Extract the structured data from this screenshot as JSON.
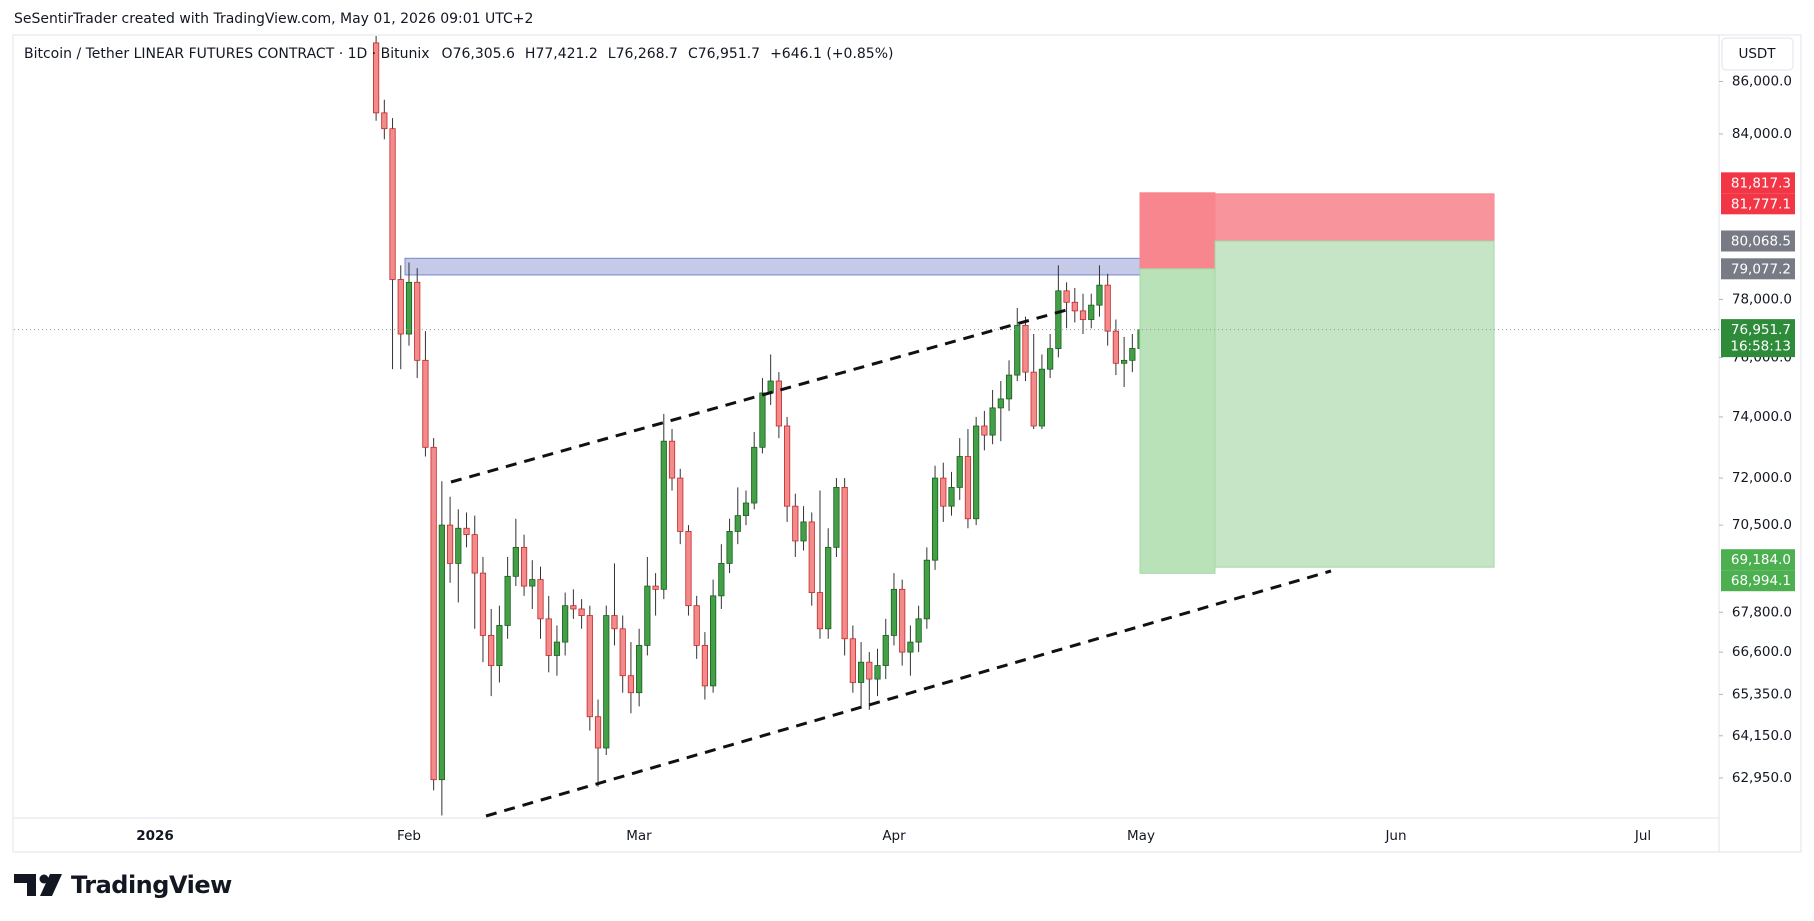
{
  "watermark_text": "SeSentirTrader created with TradingView.com, May 01, 2026 09:01 UTC+2",
  "symbol": "Bitcoin / Tether LINEAR FUTURES CONTRACT · 1D · Bitunix",
  "ohlc_text": [
    "O76,305.6",
    "H77,421.2",
    "L76,268.7",
    "C76,951.7",
    "+646.1 (+0.85%)"
  ],
  "currency": "USDT",
  "brand": "TradingView",
  "chart_data": {
    "type": "candlestick",
    "log_scale": true,
    "xtick_labels": [
      "2026",
      "Feb",
      "Mar",
      "Apr",
      "May",
      "Jun",
      "Jul"
    ],
    "open": [
      87500,
      84800,
      84200,
      78700,
      76800,
      78600,
      75900,
      73000,
      62900,
      70500,
      69300,
      70400,
      70200,
      69000,
      67100,
      66200,
      67400,
      68900,
      69800,
      68600,
      68800,
      67600,
      66500,
      66900,
      68000,
      67900,
      67700,
      64700,
      63800,
      67700,
      67300,
      65900,
      65400,
      66800,
      68600,
      68500,
      73200,
      72000,
      70300,
      68000,
      66800,
      65600,
      68300,
      69300,
      70300,
      70800,
      71200,
      73000,
      74800,
      75200,
      73700,
      71100,
      70000,
      70600,
      68400,
      67300,
      69800,
      71700,
      67000,
      65700,
      66300,
      65800,
      66200,
      67100,
      68500,
      66600,
      66900,
      67600,
      69400,
      72000,
      71100,
      71700,
      72700,
      70700,
      73700,
      73400,
      74300,
      74600,
      75400,
      77100,
      75500,
      73700,
      75600,
      76300,
      78300,
      77900,
      77600,
      77300,
      77800,
      78500,
      76900,
      75800,
      75900,
      76305.6
    ],
    "high": [
      89000,
      85300,
      84600,
      79200,
      79300,
      79100,
      76900,
      73300,
      71900,
      71400,
      71000,
      70900,
      70800,
      69500,
      67900,
      68000,
      69500,
      70700,
      70200,
      69400,
      69200,
      68300,
      67400,
      68400,
      68500,
      68200,
      68000,
      65200,
      68000,
      69300,
      67700,
      66900,
      67300,
      69500,
      69000,
      74100,
      73600,
      72300,
      70500,
      68300,
      67200,
      68800,
      69900,
      70700,
      71700,
      71600,
      73500,
      75300,
      76100,
      75500,
      74000,
      71500,
      71100,
      70900,
      71600,
      70400,
      72000,
      72000,
      67400,
      66900,
      66600,
      66700,
      67600,
      69000,
      68800,
      67400,
      68000,
      69800,
      72400,
      72500,
      72200,
      73300,
      73600,
      74000,
      74200,
      74900,
      75200,
      75900,
      77700,
      77400,
      76800,
      76100,
      76800,
      79200,
      78600,
      78400,
      78200,
      78200,
      79200,
      78900,
      77300,
      76700,
      76800,
      77421.2
    ],
    "low": [
      84500,
      83800,
      75600,
      75600,
      76400,
      75300,
      72700,
      62600,
      61900,
      68700,
      68100,
      69800,
      67300,
      66300,
      65300,
      65700,
      67000,
      68600,
      68300,
      67900,
      67000,
      66000,
      65900,
      66500,
      67600,
      67300,
      64300,
      62700,
      63600,
      66800,
      65400,
      64800,
      65000,
      66500,
      67700,
      68200,
      71600,
      69900,
      67700,
      66400,
      65200,
      65400,
      67900,
      69000,
      69900,
      70500,
      71000,
      72800,
      74400,
      73300,
      70600,
      69500,
      69700,
      68000,
      67000,
      67000,
      69500,
      66500,
      65400,
      65000,
      64900,
      65300,
      65800,
      66800,
      66200,
      65900,
      66600,
      67300,
      69100,
      70600,
      70800,
      71300,
      70400,
      70500,
      72900,
      73100,
      73200,
      74200,
      75200,
      75200,
      73600,
      73600,
      75300,
      76000,
      77000,
      77200,
      76800,
      77000,
      77400,
      76400,
      75400,
      75000,
      75500,
      76268.7
    ],
    "close": [
      84800,
      84200,
      78700,
      76800,
      78600,
      75900,
      73000,
      62900,
      70500,
      69300,
      70400,
      70200,
      69000,
      67100,
      66200,
      67400,
      68900,
      69800,
      68600,
      68800,
      67600,
      66500,
      66900,
      68000,
      67900,
      67700,
      64700,
      63800,
      67700,
      67300,
      65900,
      65400,
      66800,
      68600,
      68500,
      73200,
      72000,
      70300,
      68000,
      66800,
      65600,
      68300,
      69300,
      70300,
      70800,
      71200,
      73000,
      74800,
      75200,
      73700,
      71100,
      70000,
      70600,
      68400,
      67300,
      69800,
      71700,
      67000,
      65700,
      66300,
      65800,
      66200,
      67100,
      68500,
      66600,
      66900,
      67600,
      69400,
      72000,
      71100,
      71700,
      72700,
      70700,
      73700,
      73400,
      74300,
      74600,
      75400,
      77100,
      75500,
      73700,
      75600,
      76300,
      78300,
      77900,
      77600,
      77300,
      77800,
      78500,
      76900,
      75800,
      75900,
      76305.6,
      76951.7
    ],
    "up_color": "#43a047",
    "down_color": "#f28b8b",
    "ylim": [
      61830,
      87770
    ],
    "yticks": [
      {
        "value": 86000,
        "label": "86,000.0"
      },
      {
        "value": 84000,
        "label": "84,000.0"
      },
      {
        "value": 78000,
        "label": "78,000.0"
      },
      {
        "value": 76000,
        "label": "76,000.0"
      },
      {
        "value": 74000,
        "label": "74,000.0"
      },
      {
        "value": 72000,
        "label": "72,000.0"
      },
      {
        "value": 70500,
        "label": "70,500.0"
      },
      {
        "value": 67800,
        "label": "67,800.0"
      },
      {
        "value": 66600,
        "label": "66,600.0"
      },
      {
        "value": 65350,
        "label": "65,350.0"
      },
      {
        "value": 64150,
        "label": "64,150.0"
      },
      {
        "value": 62950,
        "label": "62,950.0"
      }
    ],
    "grid": false,
    "resistance_zone": {
      "top": 79450,
      "bottom": 78860,
      "color": "#c5cae9"
    },
    "positions": [
      {
        "stop": 81817.3,
        "stop_label": "81,817.3",
        "entry": 79077.2,
        "entry_label": "79,077.2",
        "target": 68994.1,
        "target_label": "68,994.1"
      },
      {
        "stop": 81777.1,
        "stop_label": "81,777.1",
        "entry": 80068.5,
        "entry_label": "80,068.5",
        "target": 69184.0,
        "target_label": "69,184.0"
      }
    ],
    "last": {
      "value": 76951.7,
      "label": "76,951.7",
      "countdown": "16:58:13"
    }
  }
}
